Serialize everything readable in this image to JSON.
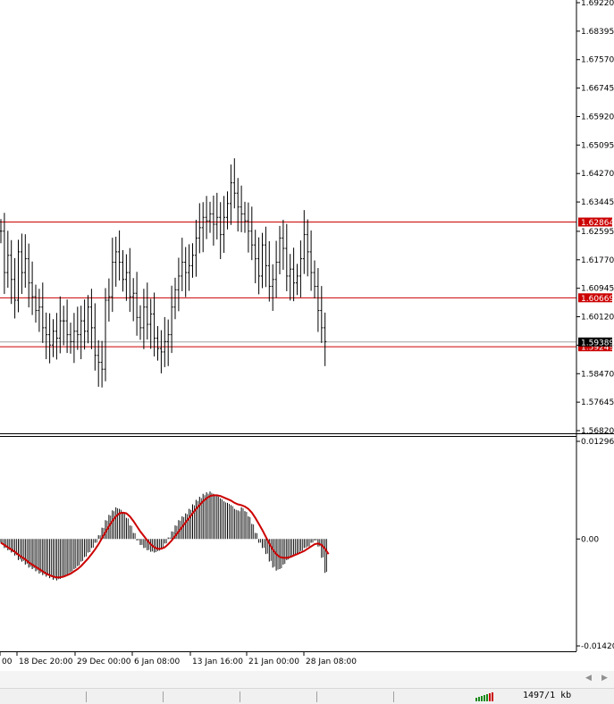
{
  "chart_data": [
    {
      "type": "ohlc",
      "panel": "price",
      "ylim": [
        1.5682,
        1.6922
      ],
      "y_ticks": [
        "1.69220",
        "1.68395",
        "1.67570",
        "1.66745",
        "1.65920",
        "1.65095",
        "1.64270",
        "1.63445",
        "1.62595",
        "1.61770",
        "1.60945",
        "1.60120",
        "1.59295",
        "1.58470",
        "1.57645",
        "1.56820"
      ],
      "horizontal_lines": [
        {
          "value": 1.62864,
          "label": "1.62864",
          "color": "#cc0000"
        },
        {
          "value": 1.60669,
          "label": "1.60669",
          "color": "#cc0000"
        },
        {
          "value": 1.59249,
          "label": "1.59249",
          "color": "#cc0000"
        }
      ],
      "current_price": {
        "value": 1.59389,
        "label": "1.59389"
      },
      "bars_close": [
        1.626,
        1.614,
        1.619,
        1.612,
        1.606,
        1.62,
        1.614,
        1.618,
        1.611,
        1.607,
        1.603,
        1.604,
        1.598,
        1.596,
        1.593,
        1.597,
        1.595,
        1.6,
        1.6,
        1.596,
        1.594,
        1.597,
        1.596,
        1.6,
        1.597,
        1.604,
        1.598,
        1.59,
        1.588,
        1.586,
        1.606,
        1.607,
        1.617,
        1.62,
        1.617,
        1.612,
        1.614,
        1.607,
        1.608,
        1.601,
        1.598,
        1.604,
        1.599,
        1.602,
        1.595,
        1.592,
        1.591,
        1.594,
        1.596,
        1.604,
        1.609,
        1.613,
        1.617,
        1.614,
        1.616,
        1.619,
        1.624,
        1.627,
        1.63,
        1.629,
        1.631,
        1.628,
        1.63,
        1.625,
        1.63,
        1.634,
        1.64,
        1.637,
        1.633,
        1.631,
        1.629,
        1.626,
        1.622,
        1.618,
        1.613,
        1.622,
        1.616,
        1.61,
        1.612,
        1.617,
        1.624,
        1.621,
        1.613,
        1.615,
        1.611,
        1.613,
        1.618,
        1.625,
        1.62,
        1.614,
        1.61,
        1.603,
        1.598,
        1.594
      ]
    },
    {
      "type": "histogram-line",
      "panel": "oscillator",
      "ylim": [
        -0.0142,
        0.012964
      ],
      "y_ticks": [
        "0.012964",
        "0.00",
        "-0.01420"
      ],
      "series": [
        {
          "values": [
            -0.0005,
            -0.0012,
            -0.0015,
            -0.0018,
            -0.0022,
            -0.0028,
            -0.003,
            -0.0034,
            -0.0038,
            -0.004,
            -0.0043,
            -0.0046,
            -0.0048,
            -0.005,
            -0.0052,
            -0.0054,
            -0.0055,
            -0.0053,
            -0.005,
            -0.0047,
            -0.0044,
            -0.004,
            -0.0036,
            -0.003,
            -0.0024,
            -0.0018,
            -0.0012,
            -0.0005,
            0.0005,
            0.0015,
            0.0025,
            0.0032,
            0.0038,
            0.0042,
            0.004,
            0.0036,
            0.0028,
            0.0018,
            0.0008,
            -0.0002,
            -0.0008,
            -0.0012,
            -0.0015,
            -0.0017,
            -0.0018,
            -0.0016,
            -0.0012,
            -0.0006,
            0.0002,
            0.001,
            0.0018,
            0.0025,
            0.003,
            0.0034,
            0.004,
            0.0046,
            0.0052,
            0.0056,
            0.006,
            0.0062,
            0.0063,
            0.006,
            0.0058,
            0.0054,
            0.005,
            0.0048,
            0.0045,
            0.004,
            0.0038,
            0.0042,
            0.0037,
            0.003,
            0.002,
            0.0008,
            -0.0005,
            -0.0012,
            -0.002,
            -0.003,
            -0.0038,
            -0.0042,
            -0.004,
            -0.0034,
            -0.0028,
            -0.0025,
            -0.0022,
            -0.002,
            -0.0016,
            -0.0012,
            -0.001,
            -0.0005,
            -0.0002,
            -0.001,
            -0.0025,
            -0.0045
          ]
        },
        {
          "values": [
            -0.0005,
            -0.0008,
            -0.0011,
            -0.0014,
            -0.0017,
            -0.0021,
            -0.0024,
            -0.0027,
            -0.0031,
            -0.0034,
            -0.0037,
            -0.004,
            -0.0043,
            -0.0046,
            -0.0048,
            -0.005,
            -0.0051,
            -0.0051,
            -0.005,
            -0.0048,
            -0.0046,
            -0.0043,
            -0.004,
            -0.0036,
            -0.0031,
            -0.0026,
            -0.002,
            -0.0014,
            -0.0007,
            0.0001,
            0.0009,
            0.0017,
            0.0024,
            0.003,
            0.0034,
            0.0035,
            0.0034,
            0.003,
            0.0024,
            0.0017,
            0.001,
            0.0004,
            -0.0002,
            -0.0007,
            -0.0011,
            -0.0013,
            -0.0013,
            -0.0011,
            -0.0007,
            -0.0002,
            0.0004,
            0.001,
            0.0016,
            0.0022,
            0.0028,
            0.0034,
            0.004,
            0.0045,
            0.005,
            0.0054,
            0.0057,
            0.0058,
            0.0058,
            0.0057,
            0.0055,
            0.0053,
            0.0051,
            0.0048,
            0.0046,
            0.0045,
            0.0043,
            0.004,
            0.0035,
            0.0028,
            0.002,
            0.0012,
            0.0003,
            -0.0006,
            -0.0014,
            -0.002,
            -0.0024,
            -0.0025,
            -0.0025,
            -0.0024,
            -0.0022,
            -0.002,
            -0.0018,
            -0.0016,
            -0.0013,
            -0.001,
            -0.0007,
            -0.0006,
            -0.0008,
            -0.0013,
            -0.002
          ]
        }
      ],
      "colors": {
        "histogram": "#000000",
        "signal": "#cc0000"
      }
    }
  ],
  "x_ticks": [
    "00",
    "18 Dec 20:00",
    "29 Dec 00:00",
    "6 Jan 08:00",
    "13 Jan 16:00",
    "21 Jan 00:00",
    "28 Jan 08:00"
  ],
  "status_bar": {
    "traffic": "1497/1 kb"
  },
  "colors": {
    "grid_border": "#000000",
    "level_line": "#cc0000",
    "price_tag": "#000000"
  }
}
